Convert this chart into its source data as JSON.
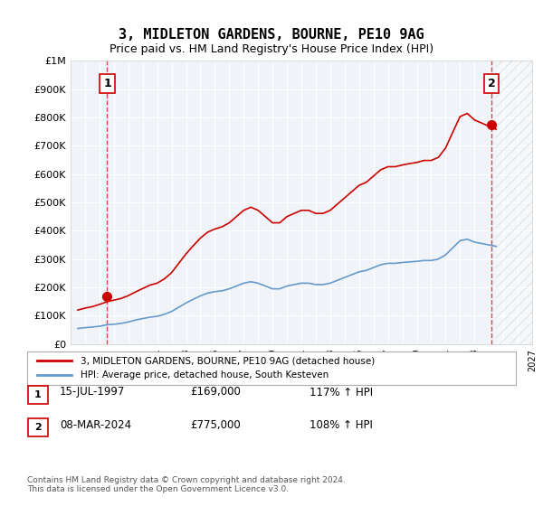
{
  "title": "3, MIDLETON GARDENS, BOURNE, PE10 9AG",
  "subtitle": "Price paid vs. HM Land Registry's House Price Index (HPI)",
  "hpi_line_color": "#6699cc",
  "price_line_color": "#cc0000",
  "background_color": "#f0f4f8",
  "plot_bg_color": "#f0f4f8",
  "ylim": [
    0,
    1000000
  ],
  "yticks": [
    0,
    100000,
    200000,
    300000,
    400000,
    500000,
    600000,
    700000,
    800000,
    900000,
    1000000
  ],
  "ytick_labels": [
    "£0",
    "£100K",
    "£200K",
    "£300K",
    "£400K",
    "£500K",
    "£600K",
    "£700K",
    "£800K",
    "£900K",
    "£1M"
  ],
  "x_start_year": 1995,
  "x_end_year": 2027,
  "transaction1": {
    "date": "15-JUL-1997",
    "price": 169000,
    "hpi_pct": "117%",
    "label": "1"
  },
  "transaction2": {
    "date": "08-MAR-2024",
    "price": 775000,
    "hpi_pct": "108%",
    "label": "2"
  },
  "legend_label1": "3, MIDLETON GARDENS, BOURNE, PE10 9AG (detached house)",
  "legend_label2": "HPI: Average price, detached house, South Kesteven",
  "footer": "Contains HM Land Registry data © Crown copyright and database right 2024.\nThis data is licensed under the Open Government Licence v3.0.",
  "hpi_data": {
    "years": [
      1995.5,
      1996.0,
      1996.5,
      1997.0,
      1997.5,
      1998.0,
      1998.5,
      1999.0,
      1999.5,
      2000.0,
      2000.5,
      2001.0,
      2001.5,
      2002.0,
      2002.5,
      2003.0,
      2003.5,
      2004.0,
      2004.5,
      2005.0,
      2005.5,
      2006.0,
      2006.5,
      2007.0,
      2007.5,
      2008.0,
      2008.5,
      2009.0,
      2009.5,
      2010.0,
      2010.5,
      2011.0,
      2011.5,
      2012.0,
      2012.5,
      2013.0,
      2013.5,
      2014.0,
      2014.5,
      2015.0,
      2015.5,
      2016.0,
      2016.5,
      2017.0,
      2017.5,
      2018.0,
      2018.5,
      2019.0,
      2019.5,
      2020.0,
      2020.5,
      2021.0,
      2021.5,
      2022.0,
      2022.5,
      2023.0,
      2023.5,
      2024.0,
      2024.5
    ],
    "values": [
      55000,
      58000,
      60000,
      63000,
      68000,
      70000,
      73000,
      78000,
      85000,
      90000,
      95000,
      98000,
      105000,
      115000,
      130000,
      145000,
      158000,
      170000,
      180000,
      185000,
      188000,
      195000,
      205000,
      215000,
      220000,
      215000,
      205000,
      195000,
      195000,
      205000,
      210000,
      215000,
      215000,
      210000,
      210000,
      215000,
      225000,
      235000,
      245000,
      255000,
      260000,
      270000,
      280000,
      285000,
      285000,
      288000,
      290000,
      292000,
      295000,
      295000,
      300000,
      315000,
      340000,
      365000,
      370000,
      360000,
      355000,
      350000,
      345000
    ]
  },
  "price_data": {
    "years": [
      1995.5,
      1996.0,
      1996.5,
      1997.0,
      1997.5,
      1998.0,
      1998.5,
      1999.0,
      1999.5,
      2000.0,
      2000.5,
      2001.0,
      2001.5,
      2002.0,
      2002.5,
      2003.0,
      2003.5,
      2004.0,
      2004.5,
      2005.0,
      2005.5,
      2006.0,
      2006.5,
      2007.0,
      2007.5,
      2008.0,
      2008.5,
      2009.0,
      2009.5,
      2010.0,
      2010.5,
      2011.0,
      2011.5,
      2012.0,
      2012.5,
      2013.0,
      2013.5,
      2014.0,
      2014.5,
      2015.0,
      2015.5,
      2016.0,
      2016.5,
      2017.0,
      2017.5,
      2018.0,
      2018.5,
      2019.0,
      2019.5,
      2020.0,
      2020.5,
      2021.0,
      2021.5,
      2022.0,
      2022.5,
      2023.0,
      2023.5,
      2024.0,
      2024.5
    ],
    "values": [
      120000,
      127000,
      132000,
      140000,
      149000,
      155000,
      161000,
      171000,
      184000,
      196000,
      208000,
      215000,
      230000,
      252000,
      285000,
      318000,
      347000,
      374000,
      395000,
      406000,
      414000,
      428000,
      450000,
      472000,
      483000,
      472000,
      450000,
      428000,
      428000,
      450000,
      461000,
      472000,
      472000,
      461000,
      461000,
      472000,
      494000,
      516000,
      538000,
      560000,
      571000,
      593000,
      615000,
      626000,
      626000,
      632000,
      637000,
      641000,
      648000,
      648000,
      659000,
      692000,
      748000,
      803000,
      814000,
      791000,
      780000,
      769000,
      758000
    ]
  }
}
